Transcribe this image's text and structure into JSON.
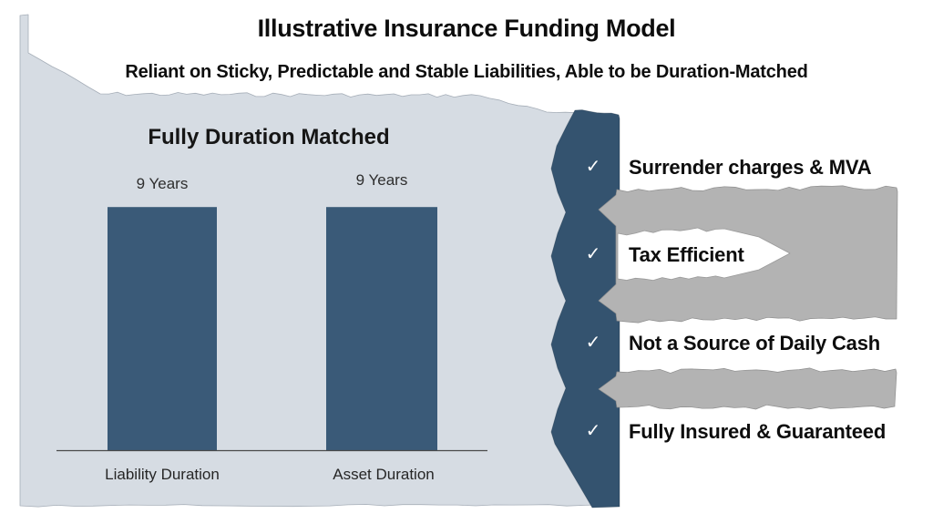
{
  "slide": {
    "title": "Illustrative Insurance Funding Model",
    "subtitle": "Reliant on Sticky, Predictable and Stable Liabilities, Able to be Duration-Matched"
  },
  "chart": {
    "title": "Fully Duration Matched",
    "bars": [
      {
        "category": "Liability Duration",
        "value": 9,
        "value_label": "9 Years"
      },
      {
        "category": "Asset Duration",
        "value": 9,
        "value_label": "9 Years"
      }
    ]
  },
  "chart_data": {
    "type": "bar",
    "title": "Fully Duration Matched",
    "categories": [
      "Liability Duration",
      "Asset Duration"
    ],
    "values": [
      9,
      9
    ],
    "data_labels": [
      "9 Years",
      "9 Years"
    ],
    "xlabel": "",
    "ylabel": "",
    "ylim": [
      0,
      10
    ],
    "grid": false,
    "legend": false,
    "bar_color": "#3A5A78"
  },
  "checklist": {
    "items": [
      "Surrender charges & MVA",
      "Tax Efficient",
      "Not a Source of Daily Cash",
      "Fully Insured & Guaranteed"
    ]
  },
  "icons": {
    "check": "✓"
  },
  "colors": {
    "panel_bg": "#D6DCE3",
    "bar": "#3A5A78",
    "ribbon": "#34536F",
    "gray_band": "#B3B3B3",
    "axis": "#4A4A4A",
    "check": "#FFFFFF",
    "text": "#0D0D0D"
  }
}
